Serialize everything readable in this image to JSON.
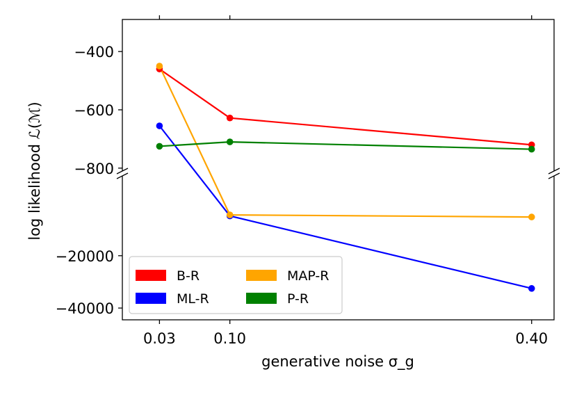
{
  "chart_data": {
    "type": "line",
    "title": "",
    "xlabel": "generative noise σ_g",
    "ylabel": "log likelihood ℒ(ℳ)",
    "x": [
      0.03,
      0.1,
      0.4
    ],
    "x_tick_labels": [
      "0.03",
      "0.10",
      "0.40"
    ],
    "xlim": [
      -0.0069,
      0.4223
    ],
    "y_upper_segment": {
      "ylim": [
        -810,
        -290
      ],
      "ticks": [
        -400,
        -600,
        -800
      ],
      "tick_labels": [
        "−400",
        "−600",
        "−800"
      ]
    },
    "y_lower_segment": {
      "ylim": [
        -44500,
        10500
      ],
      "ticks": [
        -20000,
        -40000
      ],
      "tick_labels": [
        "−20000",
        "−40000"
      ]
    },
    "broken_axis": true,
    "series": [
      {
        "name": "B-R",
        "color": "#ff0000",
        "values": [
          -460,
          -628,
          -720
        ]
      },
      {
        "name": "ML-R",
        "color": "#0000ff",
        "values": [
          -655,
          -4800,
          -32500
        ]
      },
      {
        "name": "MAP-R",
        "color": "#ffa500",
        "values": [
          -450,
          -4400,
          -5200
        ]
      },
      {
        "name": "P-R",
        "color": "#008000",
        "values": [
          -725,
          -710,
          -735
        ]
      }
    ],
    "legend": {
      "position": "lower-left",
      "columns": 2,
      "order": [
        "B-R",
        "ML-R",
        "MAP-R",
        "P-R"
      ]
    }
  }
}
